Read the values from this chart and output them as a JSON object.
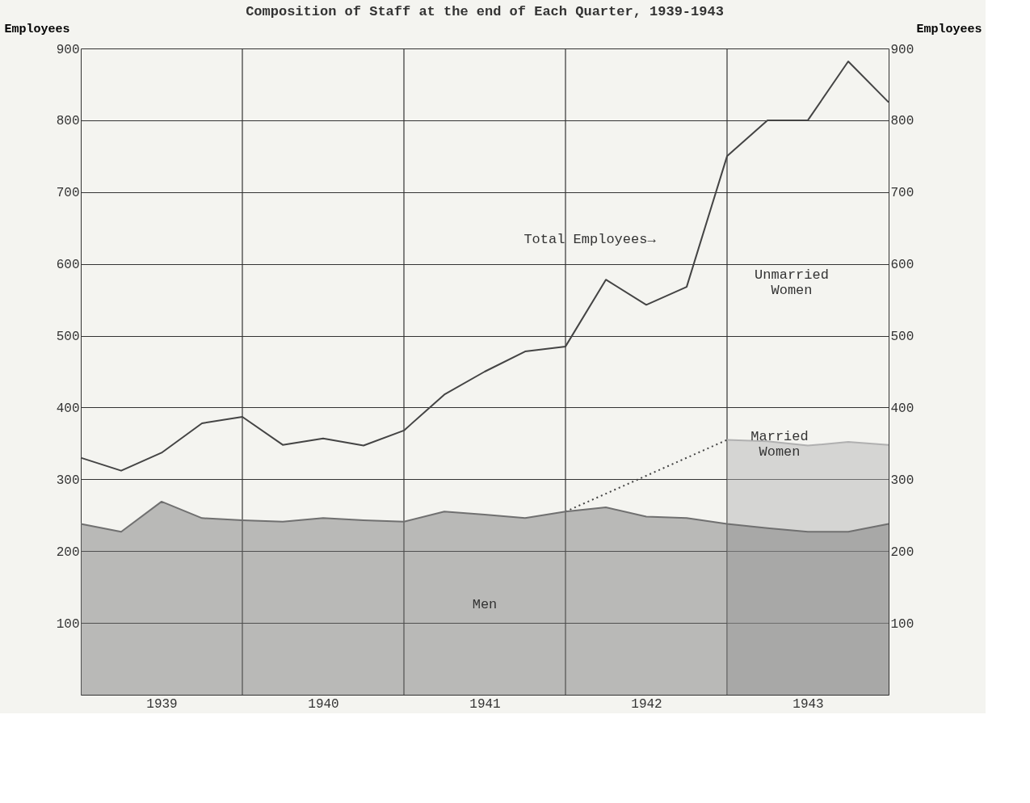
{
  "chart_data": {
    "type": "area",
    "title": "Composition of Staff at the end of Each Quarter, 1939-1943",
    "ylabel": "Employees",
    "y2label": "Employees",
    "x": [
      1939,
      1939.25,
      1939.5,
      1939.75,
      1940,
      1940.25,
      1940.5,
      1940.75,
      1941,
      1941.25,
      1941.5,
      1941.75,
      1942,
      1942.25,
      1942.5,
      1942.75,
      1943,
      1943.25,
      1943.5,
      1943.75,
      1944
    ],
    "xlim": [
      1939,
      1944
    ],
    "xticks": [
      {
        "value": 1939.5,
        "label": "1939"
      },
      {
        "value": 1940.5,
        "label": "1940"
      },
      {
        "value": 1941.5,
        "label": "1941"
      },
      {
        "value": 1942.5,
        "label": "1942"
      },
      {
        "value": 1943.5,
        "label": "1943"
      }
    ],
    "ylim": [
      0,
      900
    ],
    "yticks": [
      100,
      200,
      300,
      400,
      500,
      600,
      700,
      800,
      900
    ],
    "y2lim": [
      0,
      900
    ],
    "y2ticks": [
      100,
      200,
      300,
      400,
      500,
      600,
      700,
      800,
      900
    ],
    "grid": "y",
    "series": [
      {
        "type": "line",
        "color": "#444444",
        "line_style": "solid",
        "values": [
          330,
          312,
          337,
          378,
          387,
          348,
          357,
          347,
          368,
          418,
          450,
          478,
          485,
          578,
          543,
          568,
          750,
          800,
          800,
          882,
          825
        ]
      },
      {
        "type": "line",
        "color": "#444444",
        "line_style": "dotted",
        "x": [
          1942,
          1943
        ],
        "values": [
          255,
          355
        ]
      },
      {
        "color": "#b0b0b0",
        "line_style": "solid",
        "x": [
          1943,
          1943.25,
          1943.5,
          1943.75,
          1944
        ],
        "values": [
          355,
          353,
          347,
          352,
          348
        ]
      },
      {
        "color": "#707070",
        "line_style": "solid",
        "values": [
          238,
          227,
          269,
          246,
          243,
          241,
          246,
          243,
          241,
          255,
          251,
          246,
          255,
          261,
          248,
          246,
          238,
          232,
          227,
          227,
          238
        ]
      }
    ],
    "ref_lines": [
      {
        "axis": "x",
        "value": 1940
      },
      {
        "axis": "x",
        "value": 1941
      },
      {
        "axis": "x",
        "value": 1942
      },
      {
        "axis": "x",
        "value": 1943
      }
    ],
    "annotations": [
      "Total Employees→",
      "Unmarried\nWomen",
      "Married\nWomen",
      "Men"
    ]
  }
}
